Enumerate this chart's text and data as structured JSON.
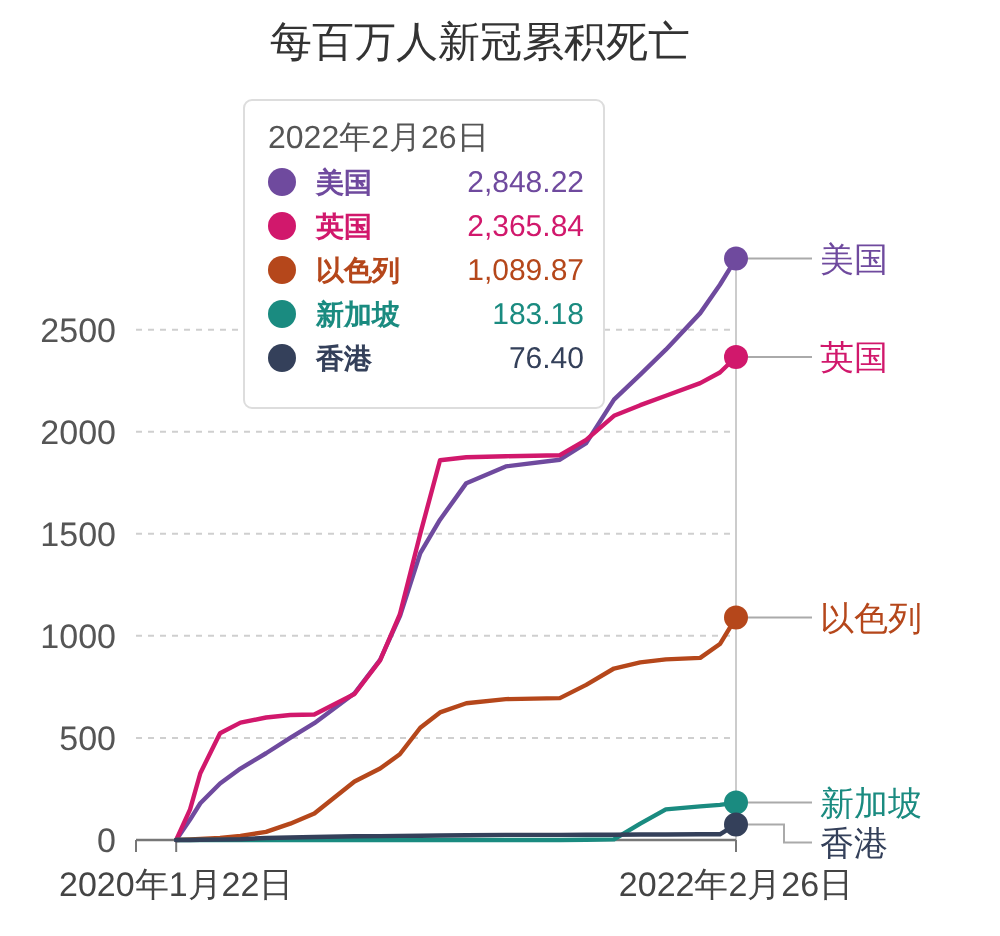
{
  "chart_data": {
    "type": "line",
    "title": "每百万人新冠累积死亡",
    "legend_title": "2022年2月26日",
    "legend": "top left",
    "grid": "y",
    "x": [
      "2020-01-22",
      "2020-02-10",
      "2020-02-24",
      "2020-03-22",
      "2020-04-19",
      "2020-05-24",
      "2020-06-26",
      "2020-07-29",
      "2020-09-22",
      "2020-10-27",
      "2020-11-23",
      "2020-12-21",
      "2021-01-17",
      "2021-02-22",
      "2021-04-17",
      "2021-06-30",
      "2021-08-05",
      "2021-09-12",
      "2021-10-18",
      "2021-11-22",
      "2022-01-08",
      "2022-02-04",
      "2022-02-26"
    ],
    "series": [
      {
        "name": "美国",
        "color": "#6f4a9e",
        "values": [
          0,
          100,
          180,
          277,
          350,
          425,
          500,
          572,
          719,
          882,
          1095,
          1405,
          1569,
          1748,
          1830,
          1863,
          1944,
          2157,
          2280,
          2402,
          2581,
          2720,
          2848.22
        ]
      },
      {
        "name": "英国",
        "color": "#d1186c",
        "values": [
          0,
          150,
          327,
          523,
          575,
          600,
          612,
          615,
          715,
          880,
          1105,
          1500,
          1860,
          1875,
          1880,
          1885,
          1960,
          2078,
          2130,
          2176,
          2238,
          2290,
          2365.84
        ]
      },
      {
        "name": "以色列",
        "color": "#b5471b",
        "values": [
          0,
          3,
          5,
          10,
          20,
          40,
          80,
          130,
          287,
          350,
          420,
          550,
          625,
          670,
          690,
          695,
          760,
          840,
          870,
          885,
          892,
          960,
          1089.87
        ]
      },
      {
        "name": "新加坡",
        "color": "#1a8b80",
        "values": [
          0,
          0,
          0,
          0,
          0,
          0,
          0,
          0,
          0,
          0,
          0,
          0,
          0,
          0,
          0,
          0,
          1,
          3,
          80,
          150,
          165,
          172,
          183.18
        ]
      },
      {
        "name": "香港",
        "color": "#34405a",
        "values": [
          0,
          0,
          1,
          2,
          4,
          10,
          12,
          15,
          18,
          19,
          20,
          21,
          22,
          23,
          25,
          25,
          26,
          26,
          27,
          27,
          28,
          28,
          76.4
        ]
      }
    ],
    "annotations": [
      "2,848.22",
      "2,365.84",
      "1,089.87",
      "183.18",
      "76.40"
    ],
    "xlim": [
      "2019-11-28",
      "2022-02-26"
    ],
    "xticks": [
      {
        "value": "2020-01-22",
        "label": "2020年1月22日"
      },
      {
        "value": "2022-02-26",
        "label": "2022年2月26日"
      }
    ],
    "ylim": [
      0,
      2900
    ],
    "yticks": [
      0,
      500,
      1000,
      1500,
      2000,
      2500
    ],
    "ref_lines": [
      {
        "axis": "x",
        "value": "2022-02-26",
        "color": "#cccccc"
      }
    ]
  }
}
